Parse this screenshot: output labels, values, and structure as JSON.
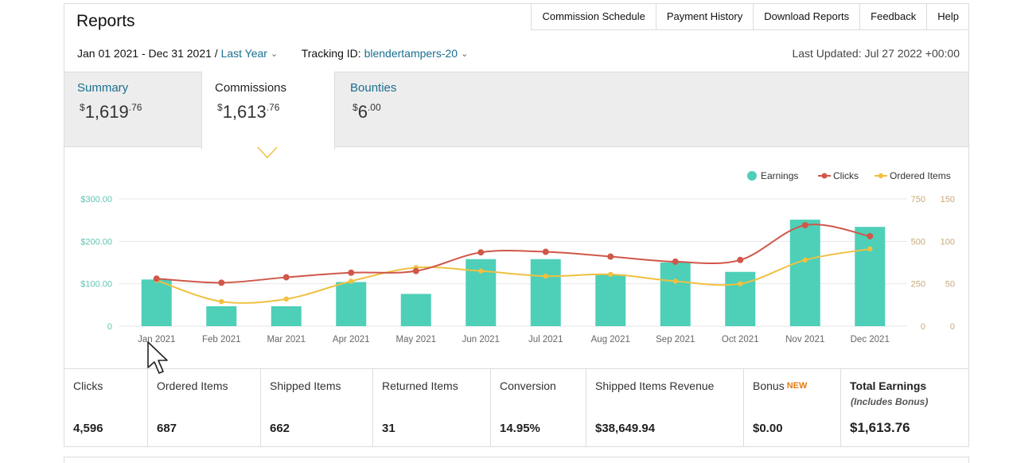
{
  "header": {
    "title": "Reports",
    "nav": [
      "Commission Schedule",
      "Payment History",
      "Download Reports",
      "Feedback",
      "Help"
    ]
  },
  "filters": {
    "date_range": "Jan 01 2021 - Dec 31 2021",
    "separator": "/",
    "range_select": "Last Year",
    "tracking_label": "Tracking ID:",
    "tracking_id": "blendertampers-20",
    "last_updated": "Last Updated: Jul 27 2022 +00:00"
  },
  "tabs": [
    {
      "label": "Summary",
      "currency": "$",
      "whole": "1,619",
      "cents": ".76"
    },
    {
      "label": "Commissions",
      "currency": "$",
      "whole": "1,613",
      "cents": ".76",
      "selected": true
    },
    {
      "label": "Bounties",
      "currency": "$",
      "whole": "6",
      "cents": ".00"
    }
  ],
  "chart_data": {
    "type": "bar",
    "categories": [
      "Jan 2021",
      "Feb 2021",
      "Mar 2021",
      "Apr 2021",
      "May 2021",
      "Jun 2021",
      "Jul 2021",
      "Aug 2021",
      "Sep 2021",
      "Oct 2021",
      "Nov 2021",
      "Dec 2021"
    ],
    "legend": [
      "Earnings",
      "Clicks",
      "Ordered Items"
    ],
    "legend_position": "top-right",
    "series": [
      {
        "name": "Earnings",
        "type": "bar",
        "axis": "left",
        "color": "#4ecfb8",
        "values": [
          110,
          47,
          47,
          104,
          76,
          158,
          158,
          122,
          150,
          128,
          251,
          234
        ]
      },
      {
        "name": "Clicks",
        "type": "line",
        "axis": "right1",
        "color": "#d0574a",
        "values": [
          280,
          256,
          288,
          315,
          325,
          435,
          438,
          410,
          380,
          390,
          595,
          530
        ]
      },
      {
        "name": "Ordered Items",
        "type": "line",
        "axis": "right2",
        "color": "#f0c040",
        "values": [
          54,
          29,
          32,
          53,
          69,
          65,
          59,
          61,
          53,
          50,
          78,
          91
        ]
      }
    ],
    "left_axis": {
      "ticks": [
        "0",
        "$100.00",
        "$200.00",
        "$300.00"
      ],
      "ylim": [
        0,
        300
      ]
    },
    "right_axis_1": {
      "ticks": [
        "0",
        "250",
        "500",
        "750"
      ],
      "ylim": [
        0,
        750
      ]
    },
    "right_axis_2": {
      "ticks": [
        "0",
        "50",
        "100",
        "150"
      ],
      "ylim": [
        0,
        150
      ]
    },
    "grid": true
  },
  "stats": [
    {
      "label": "Clicks",
      "value": "4,596"
    },
    {
      "label": "Ordered Items",
      "value": "687"
    },
    {
      "label": "Shipped Items",
      "value": "662"
    },
    {
      "label": "Returned Items",
      "value": "31"
    },
    {
      "label": "Conversion",
      "value": "14.95%"
    },
    {
      "label": "Shipped Items Revenue",
      "value": "$38,649.94"
    },
    {
      "label": "Bonus",
      "badge": "NEW",
      "value": "$0.00"
    },
    {
      "label": "Total Earnings",
      "sub": "(Includes Bonus)",
      "value": "$1,613.76"
    }
  ]
}
